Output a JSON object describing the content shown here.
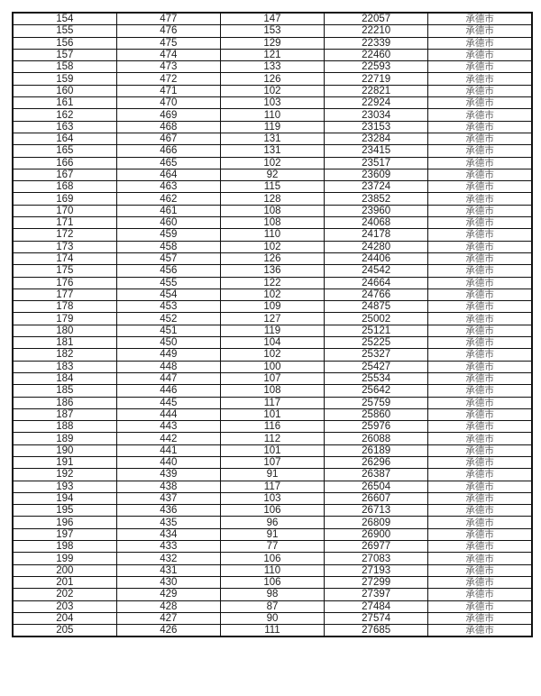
{
  "table": {
    "rows": [
      [
        "154",
        "477",
        "147",
        "22057",
        "承德市"
      ],
      [
        "155",
        "476",
        "153",
        "22210",
        "承德市"
      ],
      [
        "156",
        "475",
        "129",
        "22339",
        "承德市"
      ],
      [
        "157",
        "474",
        "121",
        "22460",
        "承德市"
      ],
      [
        "158",
        "473",
        "133",
        "22593",
        "承德市"
      ],
      [
        "159",
        "472",
        "126",
        "22719",
        "承德市"
      ],
      [
        "160",
        "471",
        "102",
        "22821",
        "承德市"
      ],
      [
        "161",
        "470",
        "103",
        "22924",
        "承德市"
      ],
      [
        "162",
        "469",
        "110",
        "23034",
        "承德市"
      ],
      [
        "163",
        "468",
        "119",
        "23153",
        "承德市"
      ],
      [
        "164",
        "467",
        "131",
        "23284",
        "承德市"
      ],
      [
        "165",
        "466",
        "131",
        "23415",
        "承德市"
      ],
      [
        "166",
        "465",
        "102",
        "23517",
        "承德市"
      ],
      [
        "167",
        "464",
        "92",
        "23609",
        "承德市"
      ],
      [
        "168",
        "463",
        "115",
        "23724",
        "承德市"
      ],
      [
        "169",
        "462",
        "128",
        "23852",
        "承德市"
      ],
      [
        "170",
        "461",
        "108",
        "23960",
        "承德市"
      ],
      [
        "171",
        "460",
        "108",
        "24068",
        "承德市"
      ],
      [
        "172",
        "459",
        "110",
        "24178",
        "承德市"
      ],
      [
        "173",
        "458",
        "102",
        "24280",
        "承德市"
      ],
      [
        "174",
        "457",
        "126",
        "24406",
        "承德市"
      ],
      [
        "175",
        "456",
        "136",
        "24542",
        "承德市"
      ],
      [
        "176",
        "455",
        "122",
        "24664",
        "承德市"
      ],
      [
        "177",
        "454",
        "102",
        "24766",
        "承德市"
      ],
      [
        "178",
        "453",
        "109",
        "24875",
        "承德市"
      ],
      [
        "179",
        "452",
        "127",
        "25002",
        "承德市"
      ],
      [
        "180",
        "451",
        "119",
        "25121",
        "承德市"
      ],
      [
        "181",
        "450",
        "104",
        "25225",
        "承德市"
      ],
      [
        "182",
        "449",
        "102",
        "25327",
        "承德市"
      ],
      [
        "183",
        "448",
        "100",
        "25427",
        "承德市"
      ],
      [
        "184",
        "447",
        "107",
        "25534",
        "承德市"
      ],
      [
        "185",
        "446",
        "108",
        "25642",
        "承德市"
      ],
      [
        "186",
        "445",
        "117",
        "25759",
        "承德市"
      ],
      [
        "187",
        "444",
        "101",
        "25860",
        "承德市"
      ],
      [
        "188",
        "443",
        "116",
        "25976",
        "承德市"
      ],
      [
        "189",
        "442",
        "112",
        "26088",
        "承德市"
      ],
      [
        "190",
        "441",
        "101",
        "26189",
        "承德市"
      ],
      [
        "191",
        "440",
        "107",
        "26296",
        "承德市"
      ],
      [
        "192",
        "439",
        "91",
        "26387",
        "承德市"
      ],
      [
        "193",
        "438",
        "117",
        "26504",
        "承德市"
      ],
      [
        "194",
        "437",
        "103",
        "26607",
        "承德市"
      ],
      [
        "195",
        "436",
        "106",
        "26713",
        "承德市"
      ],
      [
        "196",
        "435",
        "96",
        "26809",
        "承德市"
      ],
      [
        "197",
        "434",
        "91",
        "26900",
        "承德市"
      ],
      [
        "198",
        "433",
        "77",
        "26977",
        "承德市"
      ],
      [
        "199",
        "432",
        "106",
        "27083",
        "承德市"
      ],
      [
        "200",
        "431",
        "110",
        "27193",
        "承德市"
      ],
      [
        "201",
        "430",
        "106",
        "27299",
        "承德市"
      ],
      [
        "202",
        "429",
        "98",
        "27397",
        "承德市"
      ],
      [
        "203",
        "428",
        "87",
        "27484",
        "承德市"
      ],
      [
        "204",
        "427",
        "90",
        "27574",
        "承德市"
      ],
      [
        "205",
        "426",
        "111",
        "27685",
        "承德市"
      ]
    ]
  }
}
